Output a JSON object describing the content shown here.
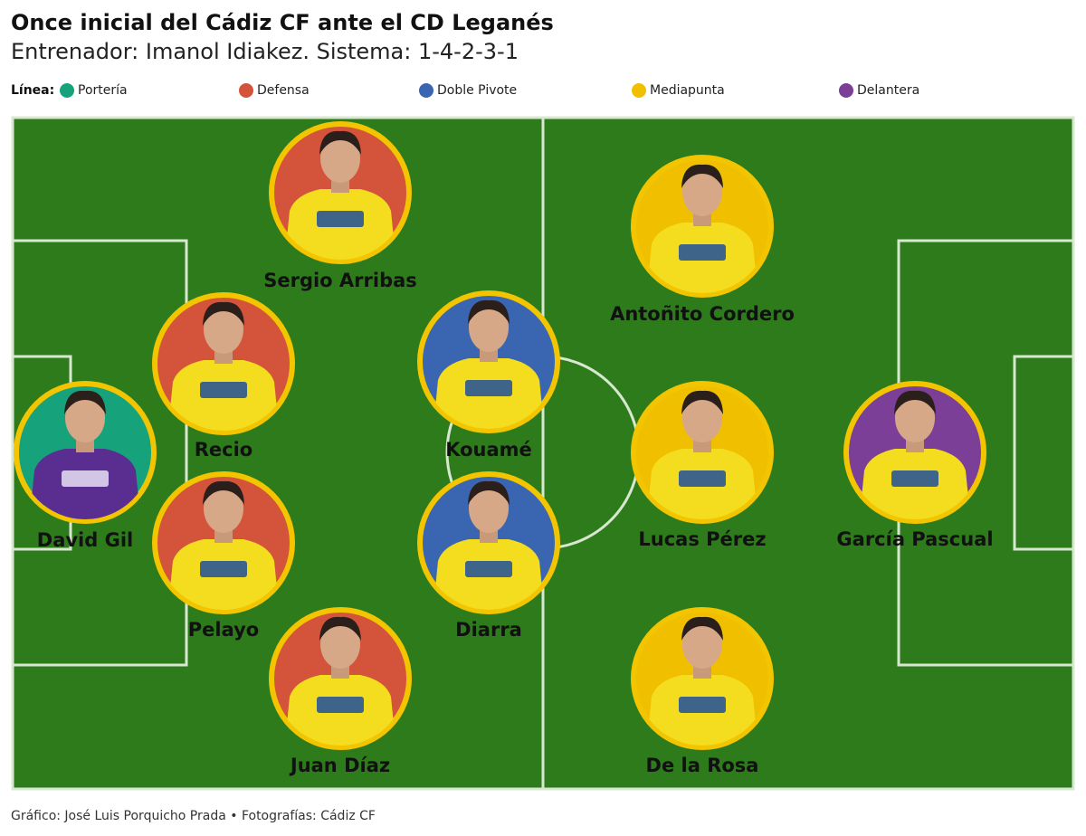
{
  "header": {
    "title": "Once inicial del Cádiz CF ante el CD Leganés",
    "subtitle": "Entrenador: Imanol Idiakez. Sistema: 1-4-2-3-1"
  },
  "legend": {
    "label": "Línea:",
    "items": [
      {
        "label": "Portería",
        "color": "#16a37b"
      },
      {
        "label": "Defensa",
        "color": "#d4533b"
      },
      {
        "label": "Doble Pivote",
        "color": "#3a65b0"
      },
      {
        "label": "Mediapunta",
        "color": "#f0c000"
      },
      {
        "label": "Delantera",
        "color": "#7c3f98"
      }
    ]
  },
  "players": [
    {
      "name": "David Gil",
      "color": "#16a37b"
    },
    {
      "name": "Recio",
      "color": "#d4533b"
    },
    {
      "name": "Pelayo",
      "color": "#d4533b"
    },
    {
      "name": "Sergio Arribas",
      "color": "#d4533b"
    },
    {
      "name": "Juan Díaz",
      "color": "#d4533b"
    },
    {
      "name": "Kouamé",
      "color": "#3a65b0"
    },
    {
      "name": "Diarra",
      "color": "#3a65b0"
    },
    {
      "name": "Antoñito Cordero",
      "color": "#f0c000"
    },
    {
      "name": "Lucas Pérez",
      "color": "#f0c000"
    },
    {
      "name": "De la Rosa",
      "color": "#f0c000"
    },
    {
      "name": "García Pascual",
      "color": "#7c3f98"
    }
  ],
  "footer": {
    "credit": "Gráfico: José Luis Porquicho Prada • Fotografías: Cádiz CF"
  }
}
